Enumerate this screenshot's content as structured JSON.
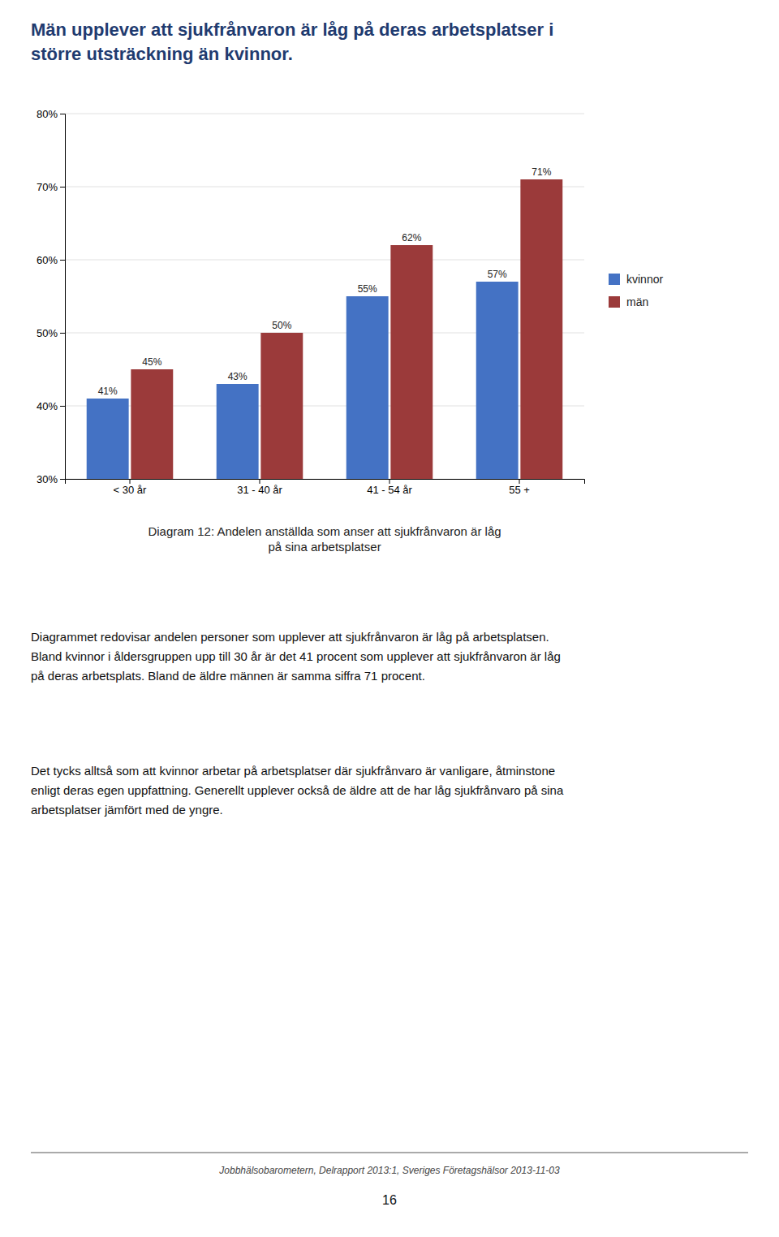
{
  "chart_data": {
    "type": "bar",
    "title": "Män upplever att sjukfrånvaron är låg på deras arbetsplatser i\nstörre utsträckning än kvinnor.",
    "categories": [
      "< 30 år",
      "31 - 40 år",
      "41 - 54 år",
      "55 +"
    ],
    "series": [
      {
        "name": "kvinnor",
        "color": "#4472C4",
        "values": [
          41,
          43,
          55,
          57
        ],
        "value_labels": [
          "41%",
          "43%",
          "55%",
          "57%"
        ]
      },
      {
        "name": "män",
        "color": "#9B3A3A",
        "values": [
          45,
          50,
          62,
          71
        ],
        "value_labels": [
          "45%",
          "50%",
          "62%",
          "71%"
        ]
      }
    ],
    "ylim": [
      30,
      80
    ],
    "yticks": [
      {
        "value": 30,
        "label": "30%"
      },
      {
        "value": 40,
        "label": "40%"
      },
      {
        "value": 50,
        "label": "50%"
      },
      {
        "value": 60,
        "label": "60%"
      },
      {
        "value": 70,
        "label": "70%"
      },
      {
        "value": 80,
        "label": "80%"
      }
    ],
    "grid": true,
    "legend": "right",
    "data_labels": true,
    "annotations": [
      "Diagram 12: Andelen anställda som anser att sjukfrånvaron är låg\npå sina arbetsplatser"
    ]
  },
  "texts": {
    "body": [
      "Diagrammet redovisar andelen personer som upplever att sjukfrånvaron är låg på arbetsplatsen.\nBland kvinnor i åldersgruppen upp till 30 år är det 41 procent som upplever att sjukfrånvaron är låg\npå deras arbetsplats. Bland de äldre männen är samma siffra 71 procent.",
      "Det tycks alltså som att kvinnor arbetar på arbetsplatser där sjukfrånvaro är vanligare, åtminstone\nenligt deras egen uppfattning. Generellt upplever också de äldre att de har låg sjukfrånvaro på sina\narbetsplatser jämfört med de yngre."
    ],
    "footer": "Jobbhälsobarometern, Delrapport 2013:1, Sveriges Företagshälsor 2013-11-03",
    "page_number": "16"
  }
}
